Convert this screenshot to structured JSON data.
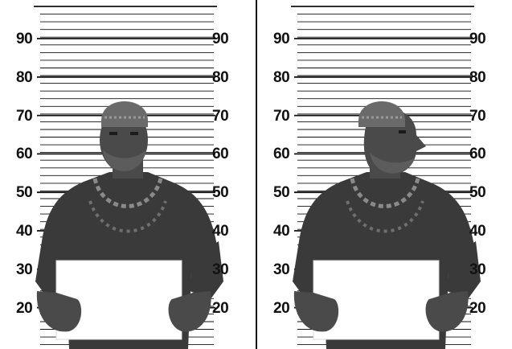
{
  "panels": [
    {
      "name": "front-view",
      "pose": "front"
    },
    {
      "name": "profile-view",
      "pose": "profile"
    }
  ],
  "height_marks": [
    "90",
    "80",
    "70",
    "60",
    "50",
    "40",
    "30",
    "20"
  ],
  "colors": {
    "background": "#ffffff",
    "lines": "#111111",
    "shirt": "#3a3a3a",
    "skin": "#4a4a4a",
    "placard": "#ffffff"
  }
}
